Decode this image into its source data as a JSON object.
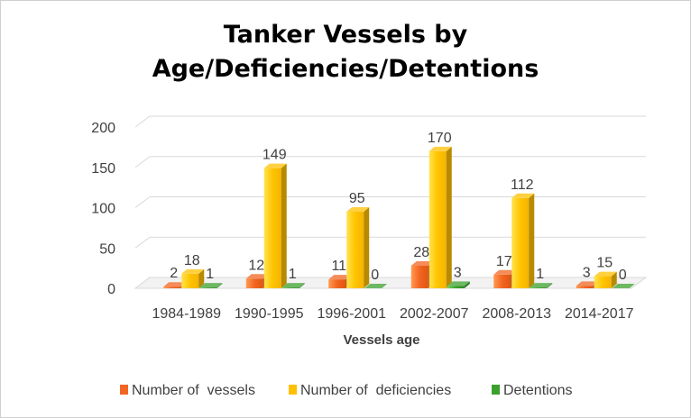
{
  "chart_data": {
    "type": "bar",
    "title_line1": "Tanker Vessels by",
    "title_line2": "Age/Deficiencies/Detentions",
    "xlabel": "Vessels age",
    "ylabel": "",
    "ylim": [
      0,
      200
    ],
    "yticks": [
      "0",
      "50",
      "100",
      "150",
      "200"
    ],
    "categories": [
      "1984-1989",
      "1990-1995",
      "1996-2001",
      "2002-2007",
      "2008-2013",
      "2014-2017"
    ],
    "series": [
      {
        "name": "Number of  vessels",
        "values": [
          2,
          12,
          11,
          28,
          17,
          3
        ],
        "color": "#F26522"
      },
      {
        "name": "Number of  deficiencies",
        "values": [
          18,
          149,
          95,
          170,
          112,
          15
        ],
        "color": "#FFC000"
      },
      {
        "name": "Detentions",
        "values": [
          1,
          1,
          0,
          3,
          1,
          0
        ],
        "color": "#3CA02E"
      }
    ],
    "grid": true,
    "legend_position": "bottom"
  }
}
